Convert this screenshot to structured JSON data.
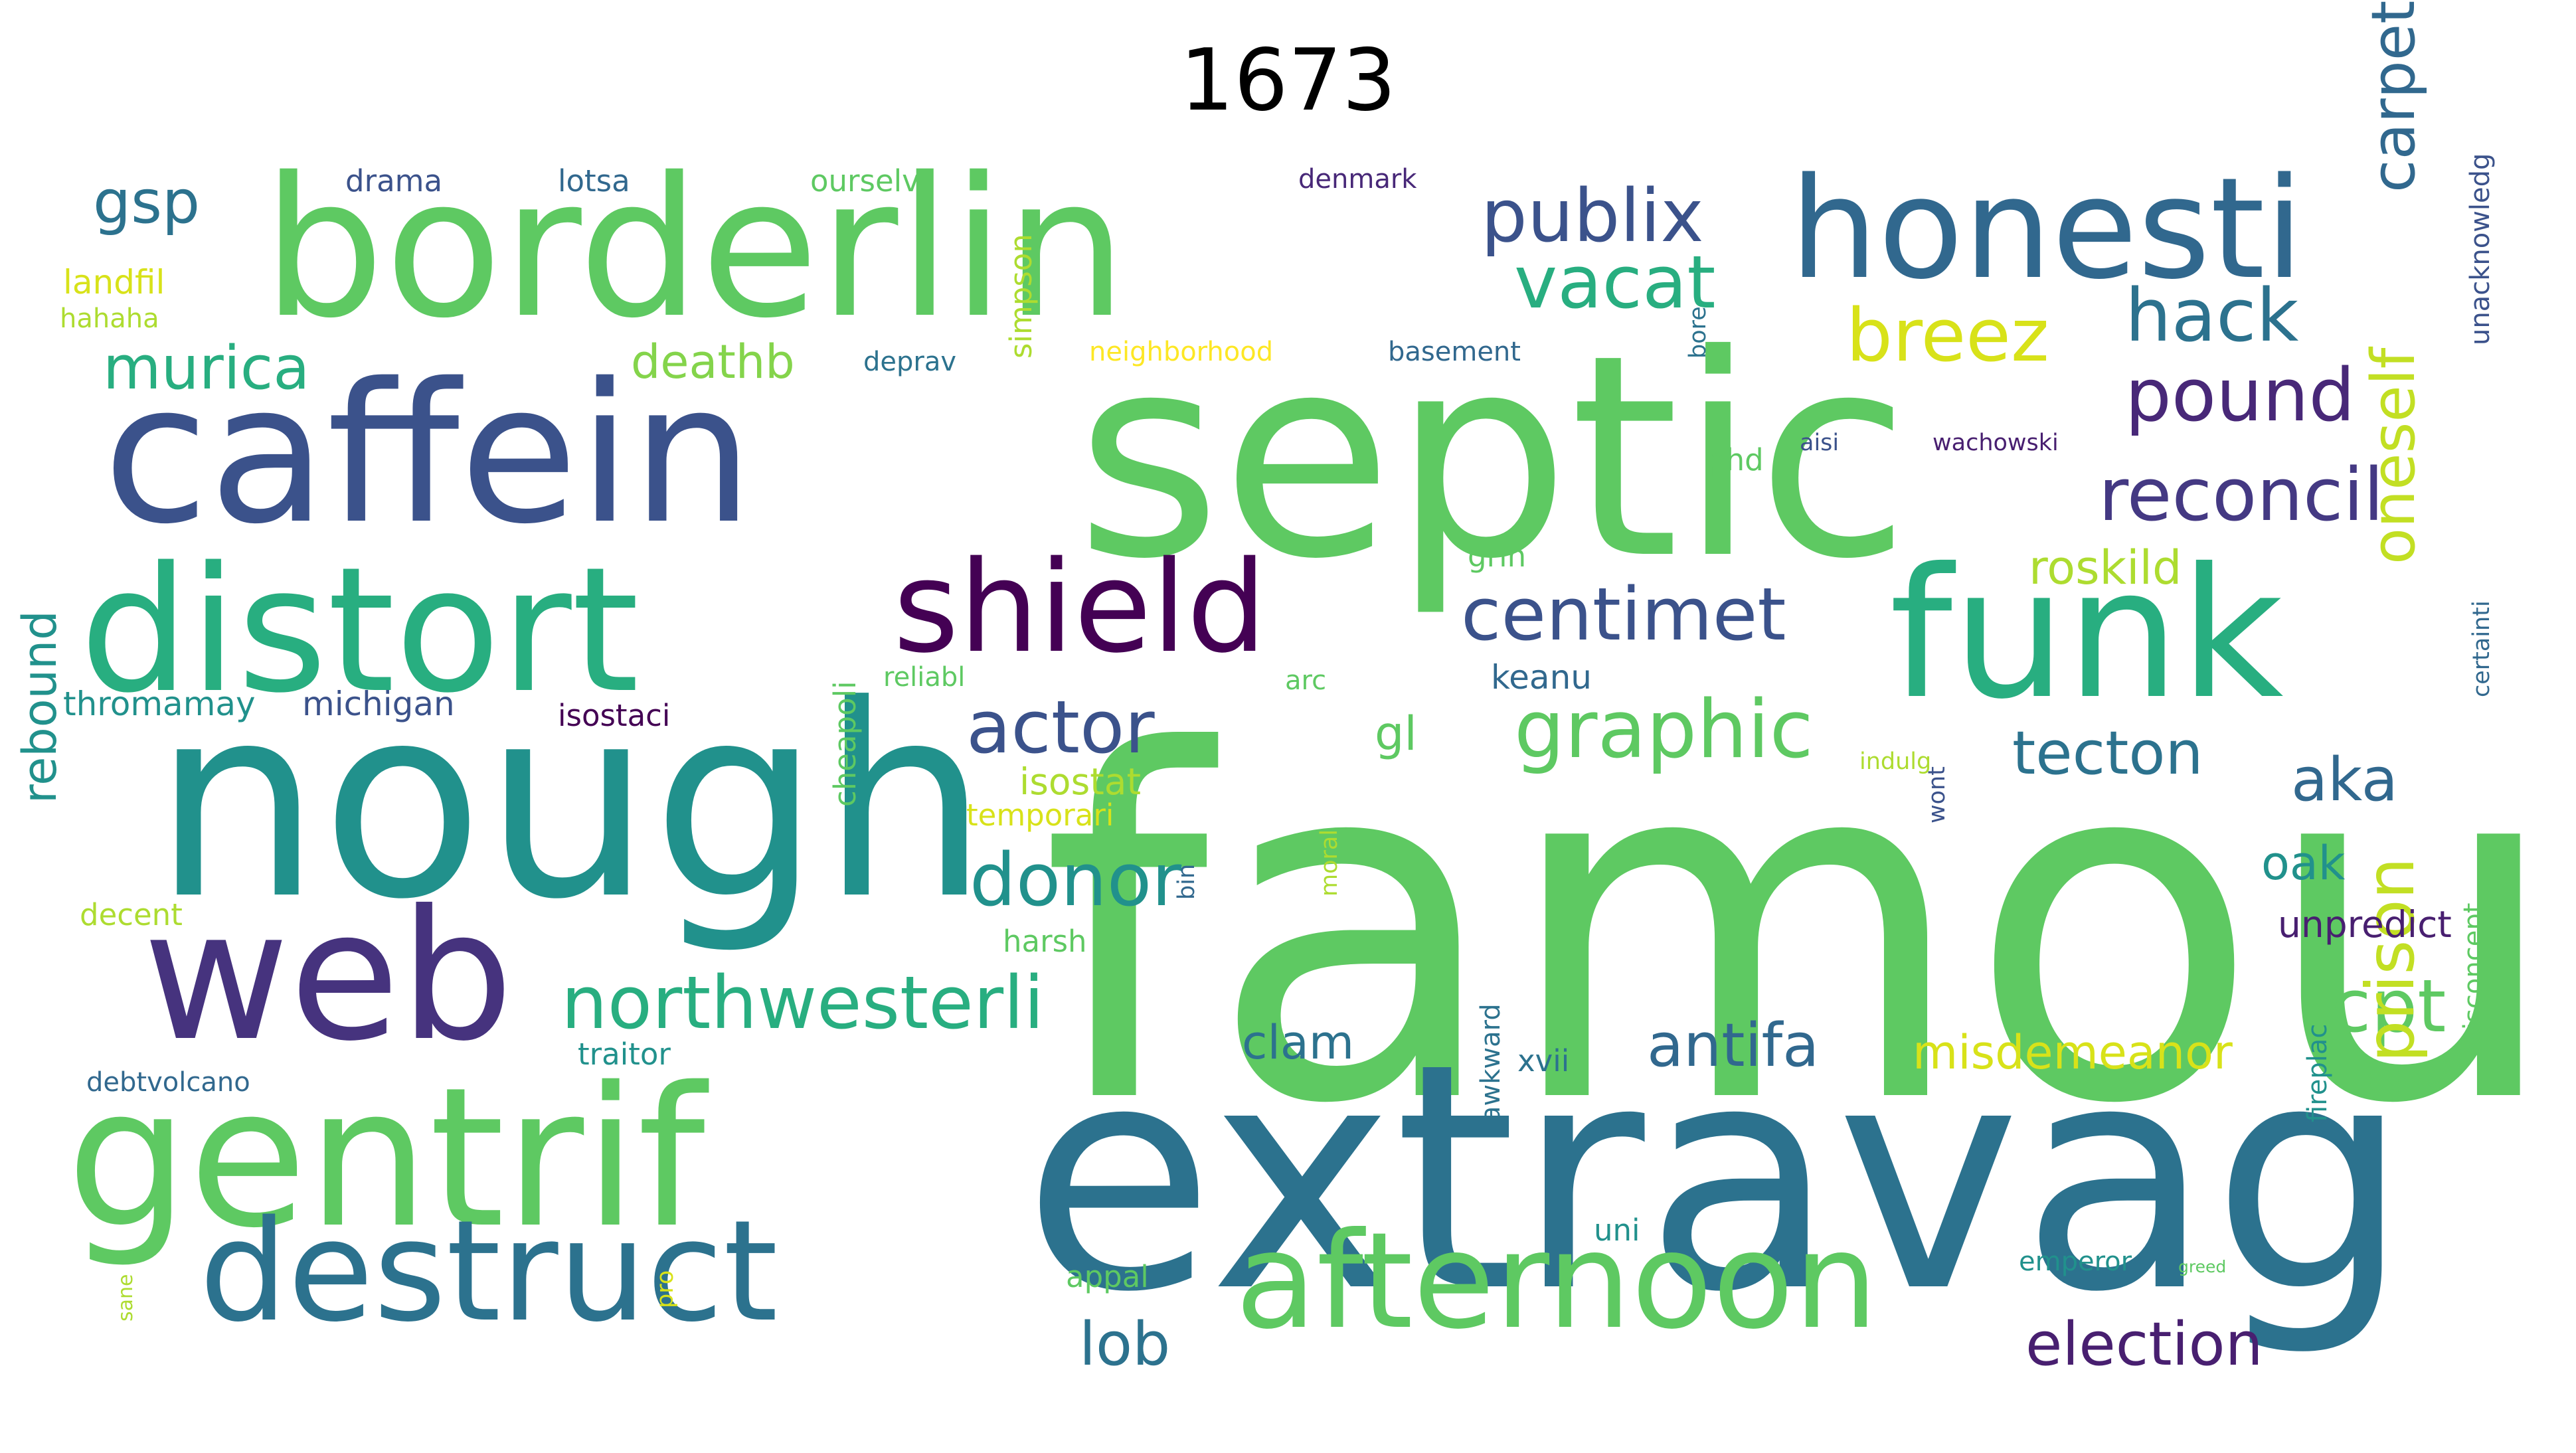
{
  "title": "1673",
  "palette": [
    "#440154",
    "#3b528b",
    "#2c728e",
    "#21918c",
    "#28ae80",
    "#5ec962",
    "#addc30",
    "#fde725"
  ],
  "words": [
    {
      "text": "famou",
      "color": "#5ec962"
    },
    {
      "text": "extravag",
      "color": "#2c728e"
    },
    {
      "text": "septic",
      "color": "#5ec962"
    },
    {
      "text": "nough",
      "color": "#21918c"
    },
    {
      "text": "caffein",
      "color": "#3b528b"
    },
    {
      "text": "borderlin",
      "color": "#5ec962"
    },
    {
      "text": "gentrif",
      "color": "#5ec962"
    },
    {
      "text": "distort",
      "color": "#28ae80"
    },
    {
      "text": "funk",
      "color": "#28ae80"
    },
    {
      "text": "web",
      "color": "#46337e"
    },
    {
      "text": "honesti",
      "color": "#31688e"
    },
    {
      "text": "destruct",
      "color": "#2c728e"
    },
    {
      "text": "afternoon",
      "color": "#5ec962"
    },
    {
      "text": "shield",
      "color": "#440154"
    },
    {
      "text": "northwesterli",
      "color": "#28ae80"
    },
    {
      "text": "publix",
      "color": "#3b528b"
    },
    {
      "text": "graphic",
      "color": "#5ec962"
    },
    {
      "text": "reconcil",
      "color": "#443983"
    },
    {
      "text": "centimet",
      "color": "#3b528b"
    },
    {
      "text": "donor",
      "color": "#21918c"
    },
    {
      "text": "actor",
      "color": "#3b528b"
    },
    {
      "text": "vacat",
      "color": "#28ae80"
    },
    {
      "text": "breez",
      "color": "#d8e219"
    },
    {
      "text": "pound",
      "color": "#482878"
    },
    {
      "text": "hack",
      "color": "#2c728e"
    },
    {
      "text": "antifa",
      "color": "#31688e"
    },
    {
      "text": "tecton",
      "color": "#2c728e"
    },
    {
      "text": "election",
      "color": "#481f70"
    },
    {
      "text": "cpt",
      "color": "#5ec962"
    },
    {
      "text": "murica",
      "color": "#28ae80"
    },
    {
      "text": "misdemeanor",
      "color": "#d8e219"
    },
    {
      "text": "prison",
      "color": "#c2df23"
    },
    {
      "text": "aka",
      "color": "#31688e"
    },
    {
      "text": "lob",
      "color": "#2c728e"
    },
    {
      "text": "carpet",
      "color": "#31688e"
    },
    {
      "text": "oneself",
      "color": "#c2df23"
    },
    {
      "text": "clam",
      "color": "#2c728e"
    },
    {
      "text": "gsp",
      "color": "#2c728e"
    },
    {
      "text": "rebound",
      "color": "#21918c"
    },
    {
      "text": "deathb",
      "color": "#84d44b"
    },
    {
      "text": "oak",
      "color": "#21918c"
    },
    {
      "text": "roskild",
      "color": "#addc30"
    },
    {
      "text": "unpredict",
      "color": "#481f70"
    },
    {
      "text": "gl",
      "color": "#5ec962"
    },
    {
      "text": "isostat",
      "color": "#addc30"
    },
    {
      "text": "keanu",
      "color": "#31688e"
    },
    {
      "text": "michigan",
      "color": "#3b528b"
    },
    {
      "text": "thromamay",
      "color": "#21918c"
    },
    {
      "text": "isostaci",
      "color": "#440154"
    },
    {
      "text": "xvii",
      "color": "#2c728e"
    },
    {
      "text": "prison",
      "color": "#c2df23"
    },
    {
      "text": "landfil",
      "color": "#d8e219"
    },
    {
      "text": "hahaha",
      "color": "#addc30"
    },
    {
      "text": "drama",
      "color": "#3b528b"
    },
    {
      "text": "lotsa",
      "color": "#31688e"
    },
    {
      "text": "ourselv",
      "color": "#5ec962"
    },
    {
      "text": "denmark",
      "color": "#482878"
    },
    {
      "text": "neighborhood",
      "color": "#fde725"
    },
    {
      "text": "basement",
      "color": "#31688e"
    },
    {
      "text": "deprav",
      "color": "#2c728e"
    },
    {
      "text": "simpson",
      "color": "#addc30"
    },
    {
      "text": "bore",
      "color": "#2c728e"
    },
    {
      "text": "aisi",
      "color": "#3b528b"
    },
    {
      "text": "wachowski",
      "color": "#481f70"
    },
    {
      "text": "phd",
      "color": "#5ec962"
    },
    {
      "text": "grin",
      "color": "#5ec962"
    },
    {
      "text": "unacknowledg",
      "color": "#3b528b"
    },
    {
      "text": "temporari",
      "color": "#d8e219"
    },
    {
      "text": "cheapoli",
      "color": "#5ec962"
    },
    {
      "text": "decent",
      "color": "#addc30"
    },
    {
      "text": "harsh",
      "color": "#5ec962"
    },
    {
      "text": "bin",
      "color": "#31688e"
    },
    {
      "text": "moral",
      "color": "#addc30"
    },
    {
      "text": "traitor",
      "color": "#21918c"
    },
    {
      "text": "debtvolcano",
      "color": "#31688e"
    },
    {
      "text": "certainti",
      "color": "#31688e"
    },
    {
      "text": "wont",
      "color": "#3b528b"
    },
    {
      "text": "indulg",
      "color": "#addc30"
    },
    {
      "text": "reliabl",
      "color": "#5ec962"
    },
    {
      "text": "arc",
      "color": "#5ec962"
    },
    {
      "text": "awkward",
      "color": "#2c728e"
    },
    {
      "text": "uni",
      "color": "#21918c"
    },
    {
      "text": "appal",
      "color": "#5ec962"
    },
    {
      "text": "emperor",
      "color": "#21918c"
    },
    {
      "text": "fireplac",
      "color": "#21918c"
    },
    {
      "text": "misconcept",
      "color": "#5ec962"
    },
    {
      "text": "pro",
      "color": "#d8e219"
    },
    {
      "text": "sane",
      "color": "#addc30"
    },
    {
      "text": "greed",
      "color": "#5ec962"
    }
  ]
}
